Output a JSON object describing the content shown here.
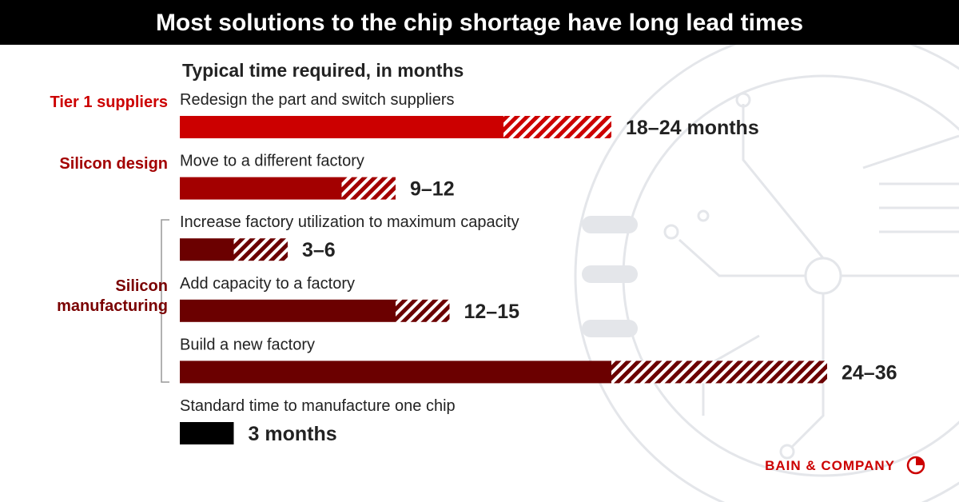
{
  "title": "Most solutions to the chip shortage have long lead times",
  "footer": {
    "brand": "BAIN & COMPANY"
  },
  "chart_data": {
    "type": "range-bar",
    "subtitle": "Typical time required, in months",
    "groups": [
      {
        "name": "Tier 1 suppliers",
        "color": "#cc0000"
      },
      {
        "name": "Silicon design",
        "color": "#a30000"
      },
      {
        "name": "Silicon manufacturing",
        "color": "#7a0000"
      }
    ],
    "rows": [
      {
        "label": "Redesign the part and switch suppliers",
        "group": 0,
        "color": "#cc0000",
        "min": 18,
        "max": 24,
        "value_label": "18–24 months"
      },
      {
        "label": "Move to a different factory",
        "group": 1,
        "color": "#a30000",
        "min": 9,
        "max": 12,
        "value_label": "9–12"
      },
      {
        "label": "Increase factory utilization to maximum capacity",
        "group": 2,
        "color": "#6b0000",
        "min": 3,
        "max": 6,
        "value_label": "3–6"
      },
      {
        "label": "Add capacity to a factory",
        "group": 2,
        "color": "#6b0000",
        "min": 12,
        "max": 15,
        "value_label": "12–15"
      },
      {
        "label": "Build a new factory",
        "group": 2,
        "color": "#6b0000",
        "min": 24,
        "max": 36,
        "value_label": "24–36"
      },
      {
        "label": "Standard time to manufacture one chip",
        "color": "#000000",
        "min": 3,
        "value_label": "3 months"
      }
    ]
  }
}
